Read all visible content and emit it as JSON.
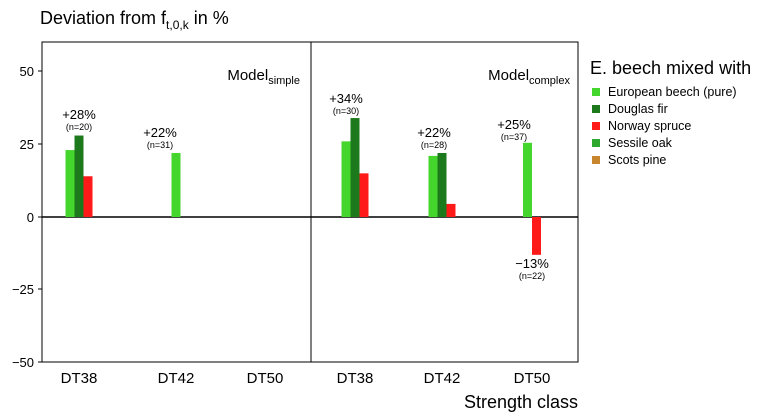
{
  "chart_data": {
    "type": "bar",
    "title": "Deviation from f",
    "title_subscript": "t,0,k",
    "title_suffix": " in %",
    "xlabel": "Strength class",
    "ylabel": "",
    "ylim": [
      -50,
      60
    ],
    "yticks": [
      "50",
      "25",
      "0",
      "−25",
      "−50"
    ],
    "grid": false,
    "legend_title": "E. beech mixed with",
    "legend_position": "right",
    "series": [
      {
        "name": "European beech (pure)",
        "color": "#44d62c"
      },
      {
        "name": "Douglas fir",
        "color": "#1c7a1c"
      },
      {
        "name": "Norway spruce",
        "color": "#ff1a1a"
      },
      {
        "name": "Sessile oak",
        "color": "#2fa82f"
      },
      {
        "name": "Scots pine",
        "color": "#c8862e"
      }
    ],
    "panels": [
      {
        "model": "Model",
        "model_subscript": "simple",
        "groups": [
          {
            "category": "DT38",
            "values": [
              23,
              28,
              14,
              null,
              null
            ],
            "label": "+28%",
            "n_label": "(n=20)"
          },
          {
            "category": "DT42",
            "values": [
              22,
              null,
              null,
              null,
              null
            ],
            "label": "+22%",
            "n_label": "(n=31)"
          },
          {
            "category": "DT50",
            "values": [
              null,
              null,
              null,
              null,
              null
            ],
            "label": "",
            "n_label": ""
          }
        ]
      },
      {
        "model": "Model",
        "model_subscript": "complex",
        "groups": [
          {
            "category": "DT38",
            "values": [
              26,
              34,
              15,
              null,
              null
            ],
            "label": "+34%",
            "n_label": "(n=30)"
          },
          {
            "category": "DT42",
            "values": [
              21,
              22,
              4.5,
              null,
              null
            ],
            "label": "+22%",
            "n_label": "(n=28)"
          },
          {
            "category": "DT50",
            "values": [
              25.5,
              null,
              -13,
              null,
              null
            ],
            "label": "+25%",
            "n_label": "(n=37)",
            "neg_label": "−13%",
            "neg_n_label": "(n=22)"
          }
        ]
      }
    ]
  }
}
